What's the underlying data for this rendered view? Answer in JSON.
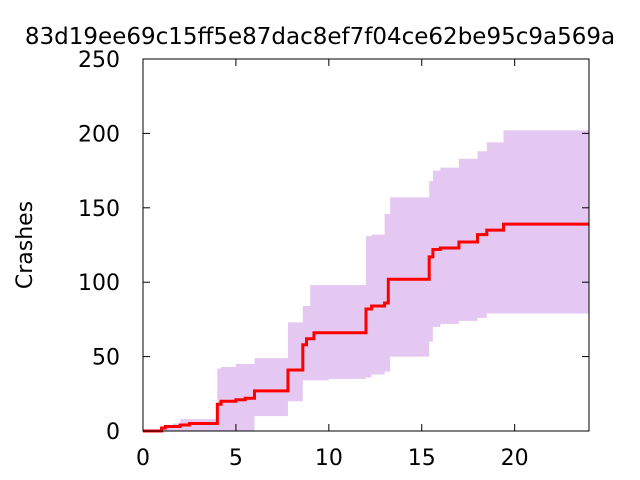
{
  "chart_data": {
    "type": "line",
    "title": "83d19ee69c15ff5e87dac8ef7f04ce62be95c9a569a",
    "xlabel": "",
    "ylabel": "Crashes",
    "xlim": [
      0,
      24
    ],
    "ylim": [
      0,
      250
    ],
    "xticks": [
      0,
      5,
      10,
      15,
      20
    ],
    "yticks": [
      0,
      50,
      100,
      150,
      200,
      250
    ],
    "grid": false,
    "legend": "none",
    "colors": {
      "line": "#ff0000",
      "band": "#e5c8f2",
      "axis": "#000000"
    },
    "series": [
      {
        "role": "mean",
        "x": [
          0,
          1.0,
          1.2,
          2.0,
          2.5,
          4.0,
          4.2,
          5.0,
          5.5,
          6.0,
          7.8,
          8.6,
          8.8,
          9.2,
          12.0,
          12.3,
          13.0,
          13.2,
          15.4,
          15.6,
          16.0,
          17.0,
          18.0,
          18.5,
          19.4,
          24
        ],
        "y": [
          0,
          2,
          3,
          4,
          5,
          18,
          20,
          21,
          22,
          27,
          41,
          58,
          62,
          66,
          82,
          84,
          86,
          102,
          117,
          122,
          123,
          127,
          132,
          135,
          139,
          139
        ]
      },
      {
        "role": "upper",
        "x": [
          0,
          1.0,
          1.6,
          2.0,
          4.0,
          4.2,
          5.0,
          6.0,
          7.8,
          8.6,
          9.0,
          12.0,
          12.3,
          13.0,
          13.3,
          15.4,
          15.6,
          16.0,
          17.0,
          18.0,
          18.5,
          19.4,
          24
        ],
        "y": [
          0,
          2,
          5,
          8,
          42,
          43,
          45,
          49,
          73,
          84,
          98,
          131,
          132,
          146,
          157,
          168,
          175,
          177,
          183,
          188,
          194,
          202,
          202
        ]
      },
      {
        "role": "lower",
        "x": [
          0,
          4.0,
          5.0,
          5.5,
          6.0,
          7.8,
          8.6,
          9.0,
          10.0,
          12.0,
          12.3,
          13.0,
          13.3,
          15.4,
          15.6,
          16.0,
          17.0,
          18.0,
          18.5,
          24
        ],
        "y": [
          0,
          0,
          0,
          0,
          10,
          20,
          34,
          34,
          35,
          36,
          38,
          40,
          50,
          60,
          70,
          72,
          74,
          76,
          79,
          79
        ]
      }
    ]
  }
}
